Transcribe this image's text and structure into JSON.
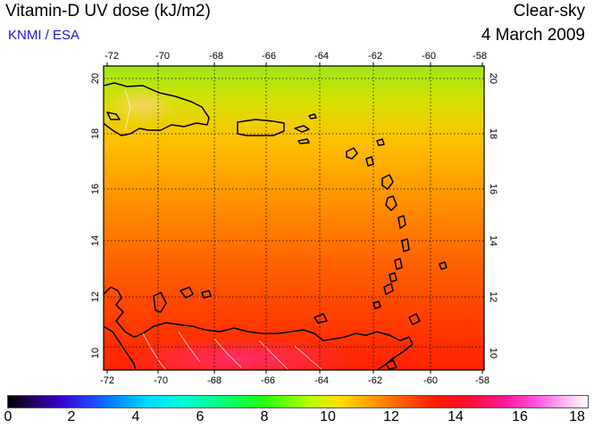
{
  "header": {
    "title": "Vitamin-D UV dose (kJ/m2)",
    "subtitle": "KNMI / ESA",
    "sky_condition": "Clear-sky",
    "date": "4 March 2009"
  },
  "map": {
    "lon_ticks": [
      "-72",
      "-70",
      "-68",
      "-66",
      "-64",
      "-62",
      "-60",
      "-58"
    ],
    "lat_ticks": [
      "10",
      "12",
      "14",
      "16",
      "18",
      "20"
    ],
    "field_colors": {
      "north": "#9be81a",
      "mid": "#ff9a00",
      "south": "#ff2d00",
      "hot": "#ff2a66"
    }
  },
  "colorbar": {
    "ticks": [
      "0",
      "2",
      "4",
      "6",
      "8",
      "10",
      "12",
      "14",
      "16",
      "18"
    ]
  }
}
